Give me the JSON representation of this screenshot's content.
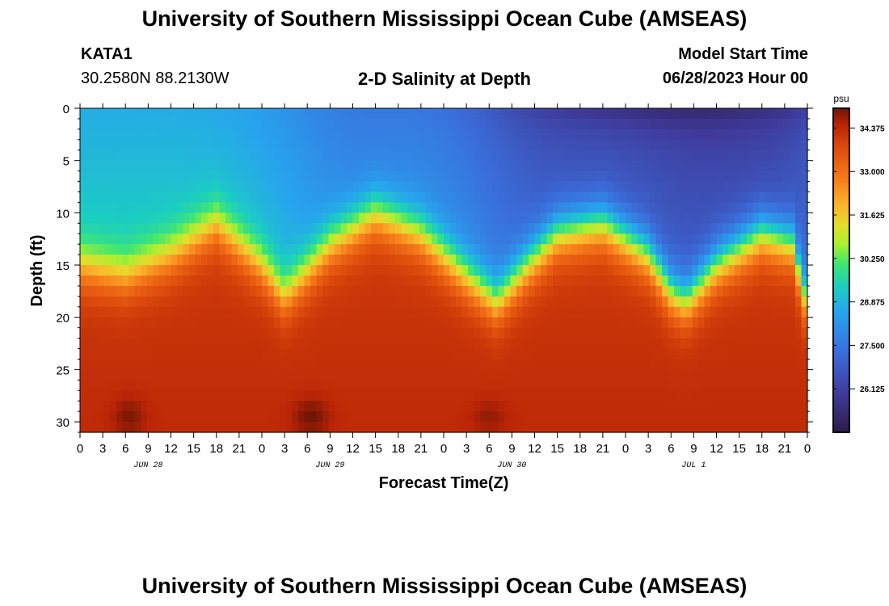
{
  "header": {
    "title": "University of Southern Mississippi Ocean Cube (AMSEAS)",
    "station_id": "KATA1",
    "coordinates": "30.2580N  88.2130W",
    "subtitle": "2-D Salinity at Depth",
    "model_start_label": "Model Start Time",
    "model_start_value": "06/28/2023 Hour 00"
  },
  "footer": {
    "title": "University of Southern Mississippi Ocean Cube (AMSEAS)"
  },
  "chart_data": {
    "type": "heatmap",
    "title": "2-D Salinity at Depth",
    "xlabel": "Forecast Time(Z)",
    "ylabel": "Depth (ft)",
    "x_ticks": [
      "0",
      "3",
      "6",
      "9",
      "12",
      "15",
      "18",
      "21",
      "0",
      "3",
      "6",
      "9",
      "12",
      "15",
      "18",
      "21",
      "0",
      "3",
      "6",
      "9",
      "12",
      "15",
      "18",
      "21",
      "0",
      "3",
      "6",
      "9",
      "12",
      "15",
      "18",
      "21",
      "0"
    ],
    "x_range_hours": [
      0,
      96
    ],
    "day_labels": [
      {
        "label": "JUN 28",
        "hour": 9
      },
      {
        "label": "JUN 29",
        "hour": 33
      },
      {
        "label": "JUN 30",
        "hour": 57
      },
      {
        "label": "JUL 1",
        "hour": 81
      }
    ],
    "y_ticks": [
      0,
      5,
      10,
      15,
      20,
      25,
      30
    ],
    "y_range": [
      0,
      31
    ],
    "colorbar": {
      "unit": "psu",
      "range": [
        24.75,
        35.0
      ],
      "ticks": [
        "34.375",
        "33.000",
        "31.625",
        "30.250",
        "28.875",
        "27.500",
        "26.125"
      ]
    },
    "halocline_depth_ft": [
      [
        0,
        15
      ],
      [
        6,
        16
      ],
      [
        12,
        14
      ],
      [
        18,
        11
      ],
      [
        24,
        15
      ],
      [
        27,
        18
      ],
      [
        33,
        13
      ],
      [
        39,
        10
      ],
      [
        45,
        12
      ],
      [
        51,
        16
      ],
      [
        55,
        18.5
      ],
      [
        59,
        15
      ],
      [
        63,
        12
      ],
      [
        69,
        11
      ],
      [
        75,
        14
      ],
      [
        78,
        17.5
      ],
      [
        80,
        18.5
      ],
      [
        84,
        15
      ],
      [
        90,
        12
      ],
      [
        94,
        13
      ],
      [
        96,
        19
      ]
    ]
  }
}
